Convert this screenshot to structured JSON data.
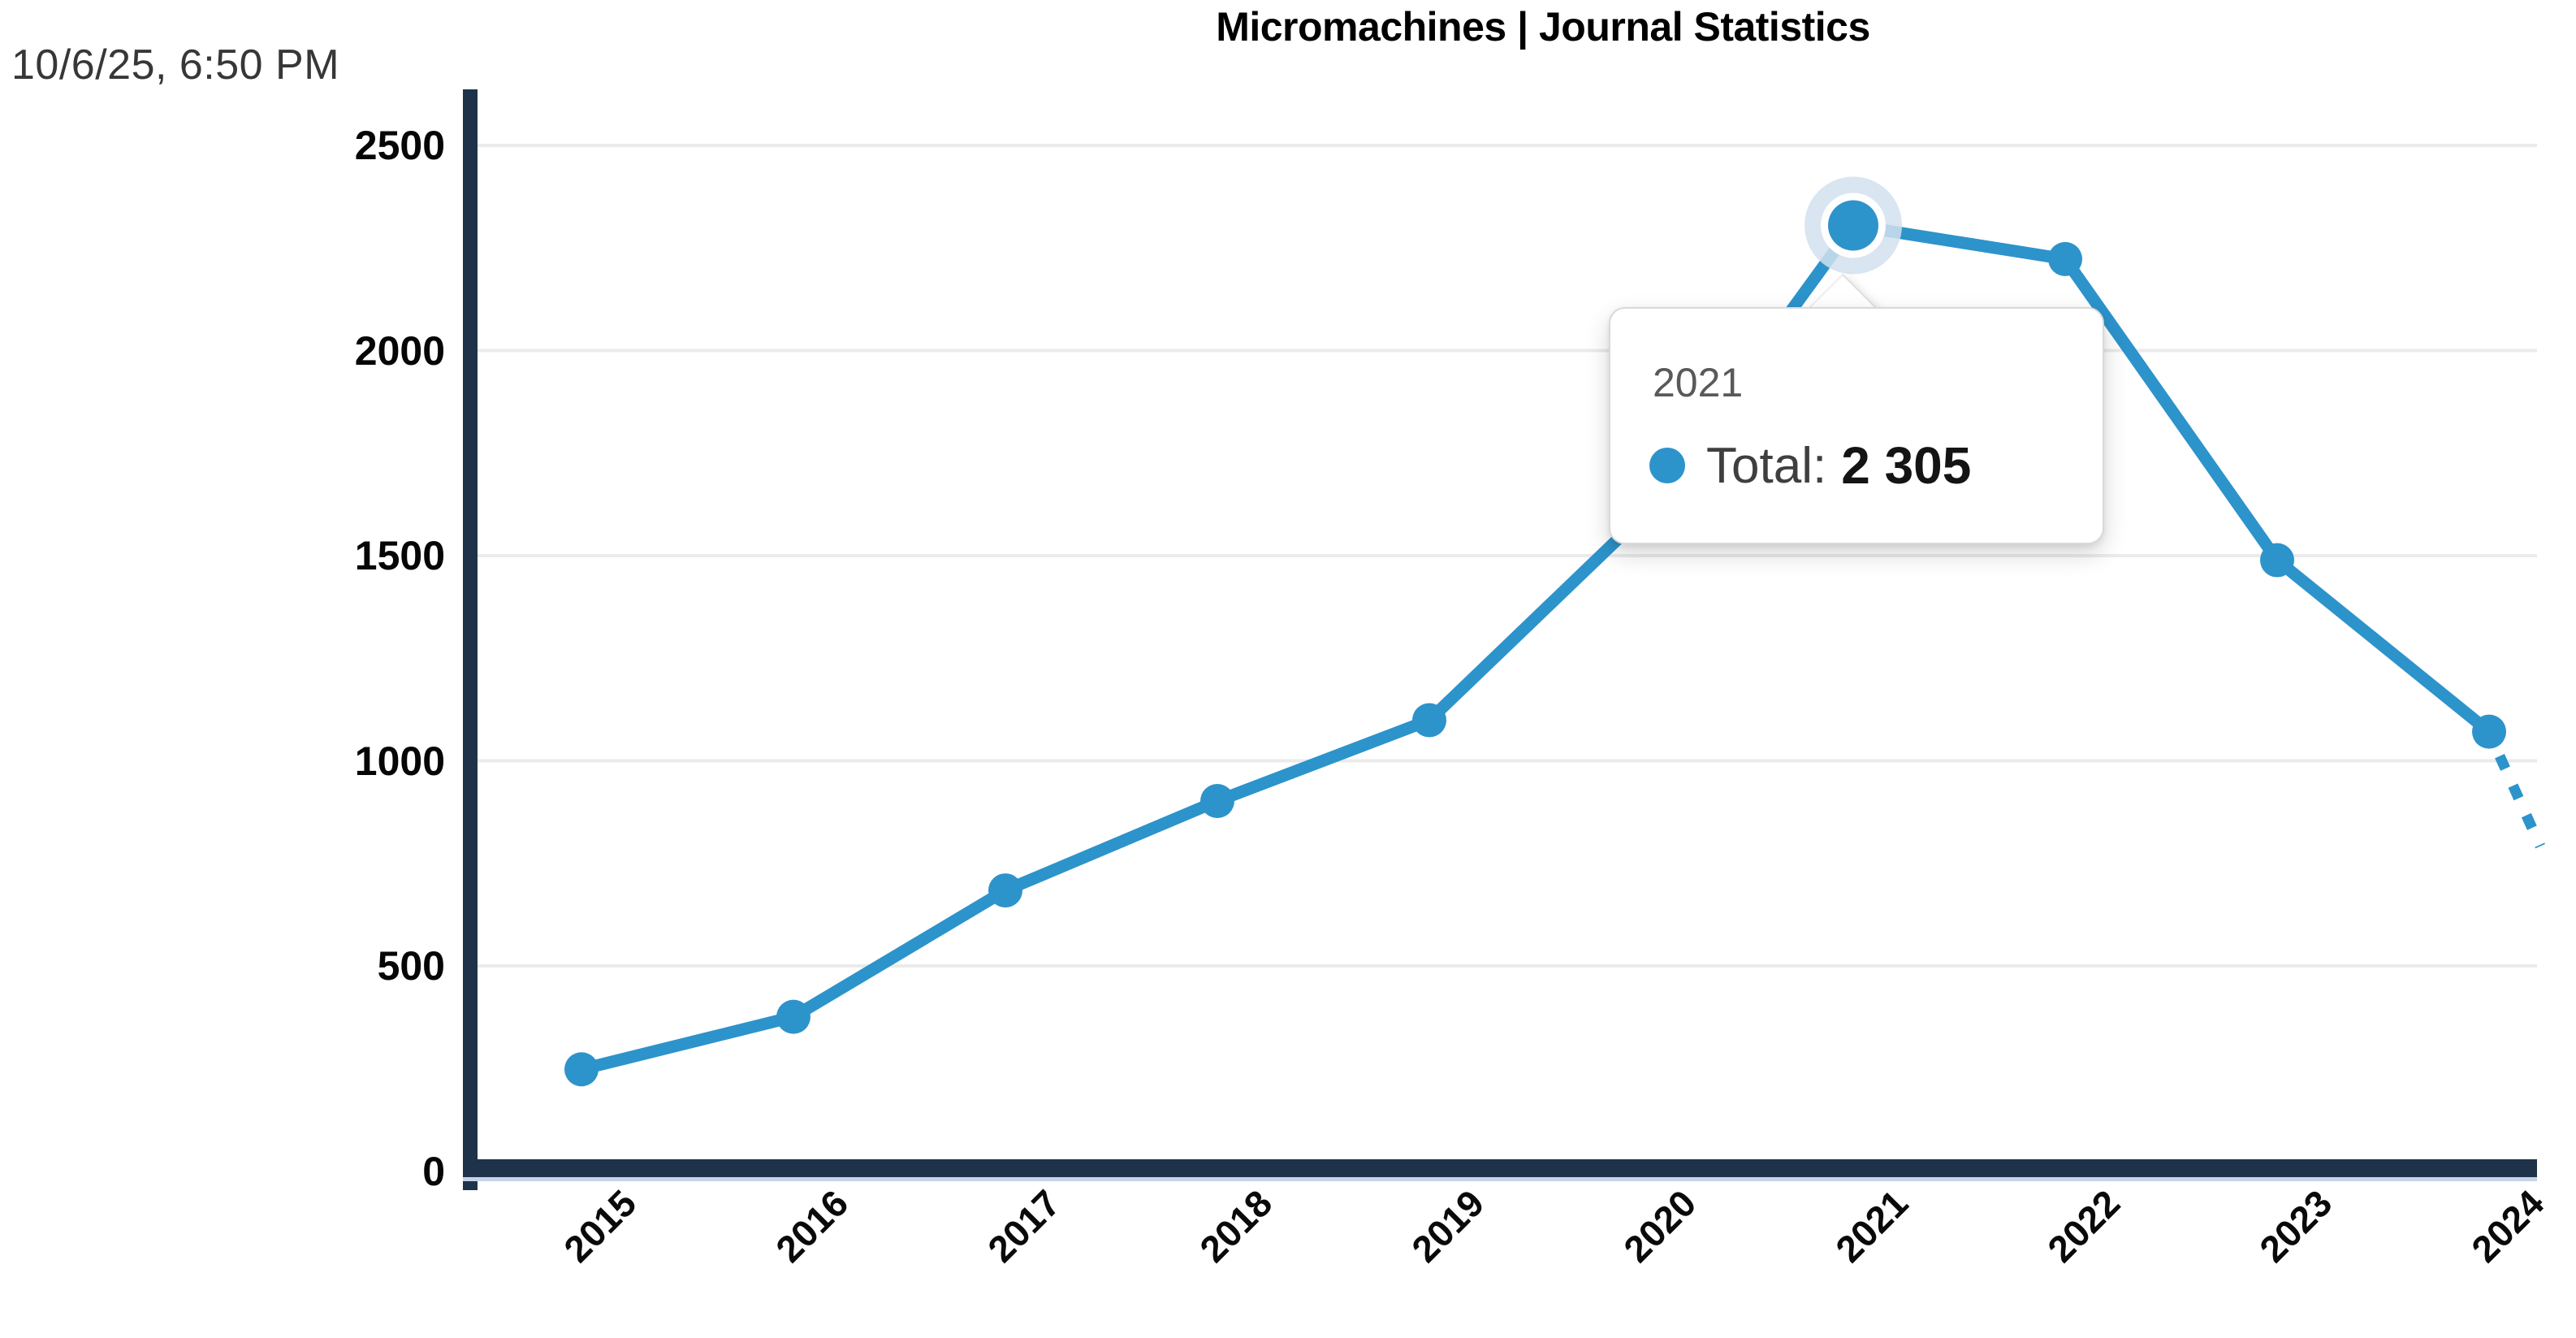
{
  "page": {
    "timestamp": "10/6/25, 6:50 PM"
  },
  "chart_data": {
    "type": "line",
    "title": "Micromachines | Journal Statistics",
    "categories": [
      "2015",
      "2016",
      "2017",
      "2018",
      "2019",
      "2020",
      "2021",
      "2022",
      "2023",
      "2024"
    ],
    "series": [
      {
        "name": "Total",
        "values": [
          248,
          376,
          684,
          902,
          1099,
          1595,
          2305,
          2223,
          1489,
          1071
        ]
      }
    ],
    "xlabel": "",
    "ylabel": "",
    "ylim": [
      0,
      2500
    ],
    "yticks": [
      0,
      500,
      1000,
      1500,
      2000,
      2500
    ],
    "grid": "horizontal",
    "legend_position": "none",
    "x_tick_rotation_deg": -45,
    "highlighted_point": {
      "category": "2021",
      "series": "Total",
      "value": 2305
    },
    "projection_dashed_tail": true,
    "colors": {
      "line": "#2d93cb",
      "axis": "#1e3349",
      "grid": "#ebebeb",
      "halo": "#d2e1ef",
      "axis_underline": "#c7d2ea",
      "background": "#ffffff"
    }
  },
  "tooltip": {
    "title": "2021",
    "label": "Total:",
    "value": "2 305",
    "marker_color": "#2d93cb"
  }
}
